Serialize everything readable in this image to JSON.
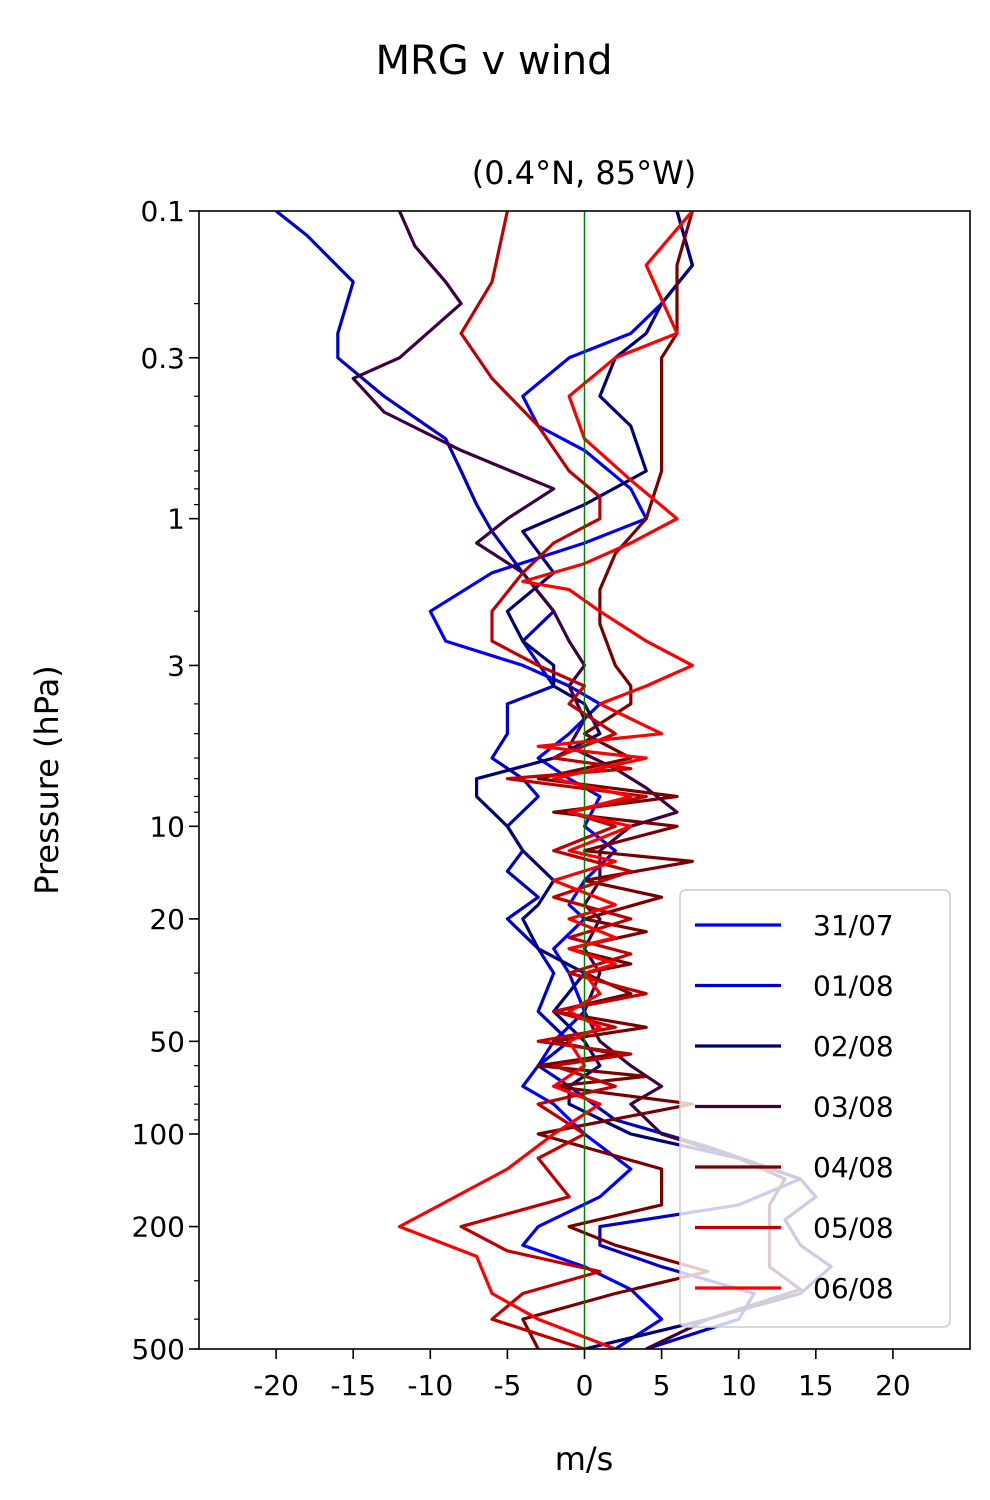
{
  "chart_data": {
    "type": "line",
    "title": "MRG v wind",
    "subtitle": "(0.4°N, 85°W)",
    "xlabel": "m/s",
    "ylabel": "Pressure (hPa)",
    "xlim": [
      -25,
      25
    ],
    "ylim": [
      500,
      0.1
    ],
    "yscale": "log",
    "x_ticks": [
      -20,
      -15,
      -10,
      -5,
      0,
      5,
      10,
      15,
      20
    ],
    "x_tick_labels": [
      "-20",
      "-15",
      "-10",
      "-5",
      "0",
      "5",
      "10",
      "15",
      "20"
    ],
    "y_ticks": [
      0.1,
      0.3,
      1,
      3,
      10,
      20,
      50,
      100,
      200,
      500
    ],
    "y_tick_labels": [
      "0.1",
      "0.3",
      "1",
      "3",
      "10",
      "20",
      "50",
      "100",
      "200",
      "500"
    ],
    "reference_line": {
      "x": 0,
      "color": "#008000"
    },
    "legend_position": "lower right",
    "grid": false,
    "series": [
      {
        "name": "31/07",
        "color": "#0000ff",
        "points": [
          [
            6,
            0.1
          ],
          [
            7,
            0.15
          ],
          [
            5,
            0.2
          ],
          [
            3,
            0.25
          ],
          [
            -1,
            0.3
          ],
          [
            -4,
            0.4
          ],
          [
            -3,
            0.5
          ],
          [
            0,
            0.6
          ],
          [
            3,
            0.8
          ],
          [
            4,
            1
          ],
          [
            0,
            1.2
          ],
          [
            -6,
            1.5
          ],
          [
            -10,
            2
          ],
          [
            -9,
            2.5
          ],
          [
            -4,
            3
          ],
          [
            -1,
            3.5
          ],
          [
            1,
            4
          ],
          [
            -1,
            5
          ],
          [
            -3,
            6
          ],
          [
            -1,
            7
          ],
          [
            1,
            8
          ],
          [
            0,
            10
          ],
          [
            2,
            12
          ],
          [
            0,
            15
          ],
          [
            -1,
            18
          ],
          [
            0,
            20
          ],
          [
            -2,
            25
          ],
          [
            -1,
            30
          ],
          [
            0,
            40
          ],
          [
            -2,
            50
          ],
          [
            -3,
            60
          ],
          [
            -4,
            70
          ],
          [
            -2,
            80
          ],
          [
            0,
            100
          ],
          [
            3,
            130
          ],
          [
            1,
            160
          ],
          [
            -3,
            200
          ],
          [
            -4,
            230
          ],
          [
            0,
            270
          ],
          [
            3,
            320
          ],
          [
            5,
            400
          ],
          [
            2,
            500
          ]
        ]
      },
      {
        "name": "01/08",
        "color": "#0000cc",
        "points": [
          [
            -20,
            0.1
          ],
          [
            -18,
            0.12
          ],
          [
            -15,
            0.17
          ],
          [
            -16,
            0.25
          ],
          [
            -16,
            0.3
          ],
          [
            -13,
            0.4
          ],
          [
            -9,
            0.55
          ],
          [
            -8,
            0.7
          ],
          [
            -7,
            0.9
          ],
          [
            -6,
            1.1
          ],
          [
            -4,
            1.5
          ],
          [
            -2,
            2
          ],
          [
            -4,
            2.5
          ],
          [
            -2,
            3.5
          ],
          [
            -5,
            4
          ],
          [
            -5,
            5
          ],
          [
            -6,
            6
          ],
          [
            -4,
            7
          ],
          [
            -3,
            8
          ],
          [
            -5,
            10
          ],
          [
            -4,
            12
          ],
          [
            -5,
            14
          ],
          [
            -3,
            17
          ],
          [
            -5,
            20
          ],
          [
            -3,
            25
          ],
          [
            -2,
            30
          ],
          [
            -3,
            40
          ],
          [
            -1,
            50
          ],
          [
            -3,
            60
          ],
          [
            -1,
            70
          ],
          [
            2,
            90
          ],
          [
            8,
            110
          ],
          [
            14,
            140
          ],
          [
            10,
            170
          ],
          [
            1,
            200
          ],
          [
            1,
            230
          ],
          [
            5,
            270
          ],
          [
            11,
            330
          ],
          [
            10,
            400
          ],
          [
            4,
            500
          ]
        ]
      },
      {
        "name": "02/08",
        "color": "#00007a",
        "points": [
          [
            6,
            0.1
          ],
          [
            7,
            0.15
          ],
          [
            5,
            0.2
          ],
          [
            4,
            0.25
          ],
          [
            2,
            0.3
          ],
          [
            1,
            0.4
          ],
          [
            3,
            0.5
          ],
          [
            4,
            0.7
          ],
          [
            0,
            0.9
          ],
          [
            -4,
            1.1
          ],
          [
            -2,
            1.5
          ],
          [
            -5,
            2
          ],
          [
            -4,
            2.5
          ],
          [
            -2,
            3
          ],
          [
            -2,
            3.5
          ],
          [
            0,
            4
          ],
          [
            1,
            5
          ],
          [
            -2,
            6
          ],
          [
            -7,
            7
          ],
          [
            -7,
            8
          ],
          [
            -5,
            10
          ],
          [
            -4,
            12
          ],
          [
            -2,
            15
          ],
          [
            -3,
            18
          ],
          [
            -4,
            20
          ],
          [
            -3,
            25
          ],
          [
            0,
            30
          ],
          [
            -2,
            40
          ],
          [
            0,
            50
          ],
          [
            1,
            60
          ],
          [
            -1,
            70
          ],
          [
            -1,
            80
          ],
          [
            3,
            100
          ],
          [
            10,
            120
          ],
          [
            14,
            140
          ],
          [
            15,
            160
          ],
          [
            13,
            190
          ],
          [
            14,
            230
          ],
          [
            16,
            270
          ],
          [
            14,
            330
          ],
          [
            8,
            400
          ],
          [
            0,
            500
          ]
        ]
      },
      {
        "name": "03/08",
        "color": "#3d0040",
        "points": [
          [
            -12,
            0.1
          ],
          [
            -11,
            0.13
          ],
          [
            -9,
            0.17
          ],
          [
            -8,
            0.2
          ],
          [
            -12,
            0.3
          ],
          [
            -15,
            0.35
          ],
          [
            -13,
            0.45
          ],
          [
            -8,
            0.6
          ],
          [
            -2,
            0.8
          ],
          [
            -5,
            1
          ],
          [
            -7,
            1.2
          ],
          [
            -4,
            1.5
          ],
          [
            -2,
            2
          ],
          [
            -1,
            2.5
          ],
          [
            0,
            3
          ],
          [
            -1,
            3.5
          ],
          [
            0,
            4.5
          ],
          [
            -1,
            5.5
          ],
          [
            2,
            6.5
          ],
          [
            4,
            7.5
          ],
          [
            6,
            9
          ],
          [
            3,
            10
          ],
          [
            1,
            12
          ],
          [
            1,
            15
          ],
          [
            0,
            18
          ],
          [
            1,
            20
          ],
          [
            0,
            25
          ],
          [
            1,
            30
          ],
          [
            0,
            40
          ],
          [
            1,
            50
          ],
          [
            3,
            60
          ],
          [
            5,
            70
          ],
          [
            3,
            80
          ],
          [
            5,
            100
          ],
          [
            10,
            120
          ],
          [
            13,
            140
          ],
          [
            12,
            170
          ],
          [
            12,
            200
          ],
          [
            12,
            230
          ],
          [
            12,
            270
          ],
          [
            14,
            320
          ],
          [
            8,
            400
          ],
          [
            4,
            500
          ]
        ]
      },
      {
        "name": "04/08",
        "color": "#7a0000",
        "points": [
          [
            7,
            0.1
          ],
          [
            6,
            0.15
          ],
          [
            6,
            0.2
          ],
          [
            6,
            0.25
          ],
          [
            5,
            0.3
          ],
          [
            5,
            0.4
          ],
          [
            5,
            0.5
          ],
          [
            5,
            0.7
          ],
          [
            4,
            1
          ],
          [
            2,
            1.3
          ],
          [
            1,
            1.7
          ],
          [
            1,
            2.2
          ],
          [
            2,
            3
          ],
          [
            3,
            3.5
          ],
          [
            3,
            4
          ],
          [
            0,
            5
          ],
          [
            3,
            6
          ],
          [
            -3,
            7
          ],
          [
            6,
            8
          ],
          [
            -2,
            9
          ],
          [
            6,
            10
          ],
          [
            0,
            12
          ],
          [
            7,
            13
          ],
          [
            0,
            15
          ],
          [
            5,
            17
          ],
          [
            0,
            20
          ],
          [
            4,
            22
          ],
          [
            -1,
            25
          ],
          [
            3,
            28
          ],
          [
            0,
            30
          ],
          [
            3,
            35
          ],
          [
            -2,
            40
          ],
          [
            4,
            45
          ],
          [
            -2,
            50
          ],
          [
            2,
            55
          ],
          [
            -3,
            60
          ],
          [
            4,
            65
          ],
          [
            -2,
            70
          ],
          [
            7,
            80
          ],
          [
            -3,
            100
          ],
          [
            5,
            130
          ],
          [
            5,
            170
          ],
          [
            -1,
            200
          ],
          [
            2,
            230
          ],
          [
            8,
            280
          ],
          [
            2,
            330
          ],
          [
            -4,
            400
          ],
          [
            -3,
            500
          ]
        ]
      },
      {
        "name": "05/08",
        "color": "#c00000",
        "points": [
          [
            -5,
            0.1
          ],
          [
            -6,
            0.17
          ],
          [
            -8,
            0.25
          ],
          [
            -6,
            0.35
          ],
          [
            -3,
            0.5
          ],
          [
            -1,
            0.7
          ],
          [
            1,
            0.85
          ],
          [
            1,
            1
          ],
          [
            -2,
            1.2
          ],
          [
            -4,
            1.5
          ],
          [
            -6,
            2
          ],
          [
            -6,
            2.5
          ],
          [
            -3,
            3
          ],
          [
            0,
            3.5
          ],
          [
            -1,
            4
          ],
          [
            2,
            5
          ],
          [
            -2,
            6
          ],
          [
            3,
            6.5
          ],
          [
            -5,
            7
          ],
          [
            4,
            8
          ],
          [
            -1,
            9
          ],
          [
            2,
            10
          ],
          [
            -2,
            12
          ],
          [
            3,
            14
          ],
          [
            -2,
            17
          ],
          [
            3,
            20
          ],
          [
            -1,
            23
          ],
          [
            3,
            26
          ],
          [
            -1,
            30
          ],
          [
            4,
            35
          ],
          [
            -2,
            40
          ],
          [
            2,
            45
          ],
          [
            -3,
            50
          ],
          [
            3,
            55
          ],
          [
            -2,
            60
          ],
          [
            2,
            70
          ],
          [
            -3,
            80
          ],
          [
            0,
            100
          ],
          [
            -3,
            120
          ],
          [
            -1,
            160
          ],
          [
            -8,
            200
          ],
          [
            -5,
            240
          ],
          [
            1,
            280
          ],
          [
            -4,
            330
          ],
          [
            -6,
            400
          ],
          [
            0,
            500
          ]
        ]
      },
      {
        "name": "06/08",
        "color": "#ff0000",
        "points": [
          [
            7,
            0.1
          ],
          [
            4,
            0.15
          ],
          [
            6,
            0.25
          ],
          [
            2,
            0.3
          ],
          [
            -1,
            0.4
          ],
          [
            0,
            0.55
          ],
          [
            3,
            0.75
          ],
          [
            6,
            1
          ],
          [
            3,
            1.2
          ],
          [
            0,
            1.4
          ],
          [
            -4,
            1.6
          ],
          [
            -1,
            1.7
          ],
          [
            1,
            2
          ],
          [
            4,
            2.5
          ],
          [
            7,
            3
          ],
          [
            4,
            3.5
          ],
          [
            1,
            4
          ],
          [
            5,
            5
          ],
          [
            -3,
            5.5
          ],
          [
            4,
            6
          ],
          [
            -2,
            7
          ],
          [
            3,
            8
          ],
          [
            -1,
            9
          ],
          [
            3,
            10
          ],
          [
            -1,
            12
          ],
          [
            2,
            13
          ],
          [
            -2,
            15
          ],
          [
            2,
            18
          ],
          [
            -1,
            20
          ],
          [
            2,
            23
          ],
          [
            -1,
            25
          ],
          [
            2,
            28
          ],
          [
            0,
            30
          ],
          [
            1,
            35
          ],
          [
            -1,
            40
          ],
          [
            1,
            45
          ],
          [
            -1,
            50
          ],
          [
            0,
            60
          ],
          [
            -2,
            70
          ],
          [
            1,
            80
          ],
          [
            -2,
            100
          ],
          [
            -5,
            130
          ],
          [
            -12,
            200
          ],
          [
            -7,
            250
          ],
          [
            -6,
            330
          ],
          [
            -3,
            400
          ],
          [
            2,
            500
          ]
        ]
      }
    ]
  }
}
